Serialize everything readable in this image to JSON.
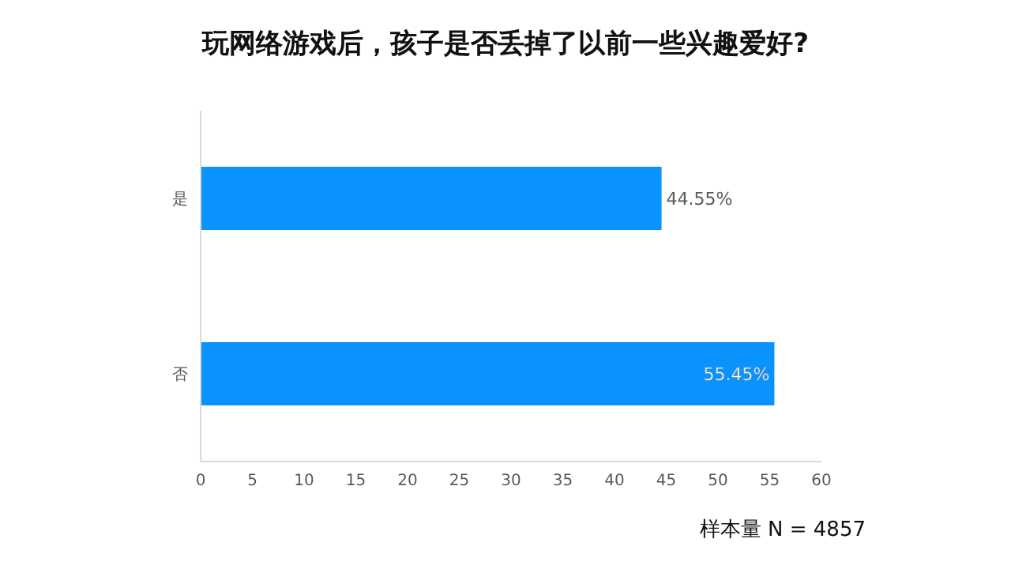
{
  "chart_data": {
    "type": "bar",
    "orientation": "horizontal",
    "title": "玩网络游戏后，孩子是否丢掉了以前一些兴趣爱好?",
    "categories": [
      "是",
      "否"
    ],
    "values": [
      44.55,
      55.45
    ],
    "value_labels": [
      "44.55%",
      "55.45%"
    ],
    "color": "#0a93fc",
    "xlim": [
      0,
      60
    ],
    "xticks": [
      0,
      5,
      10,
      15,
      20,
      25,
      30,
      35,
      40,
      45,
      50,
      55,
      60
    ],
    "grid": false,
    "legend": false,
    "annotations": [
      "样本量 N = 4857"
    ]
  }
}
